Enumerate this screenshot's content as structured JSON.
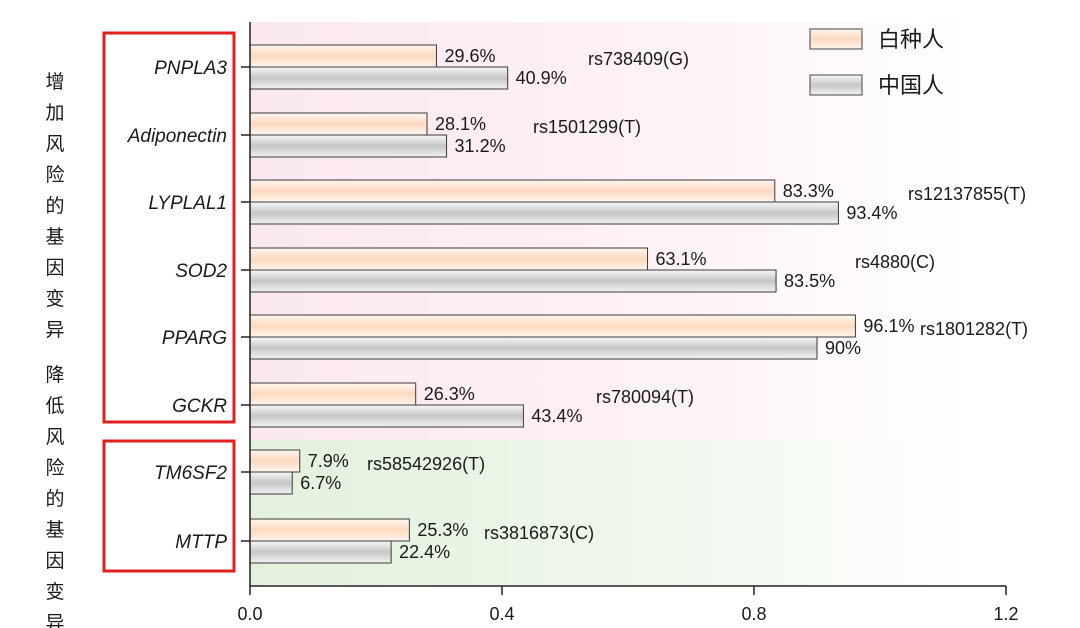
{
  "chart_data": {
    "type": "bar",
    "orientation": "horizontal",
    "categories": [
      "PNPLA3",
      "Adiponectin",
      "LYPLAL1",
      "SOD2",
      "PPARG",
      "GCKR",
      "TM6SF2",
      "MTTP"
    ],
    "snps": [
      "rs738409(G)",
      "rs1501299(T)",
      "rs12137855(T)",
      "rs4880(C)",
      "rs1801282(T)",
      "rs780094(T)",
      "rs58542926(T)",
      "rs3816873(C)"
    ],
    "series": [
      {
        "name": "白种人",
        "values": [
          0.296,
          0.281,
          0.833,
          0.631,
          0.961,
          0.263,
          0.079,
          0.253
        ],
        "labels": [
          "29.6%",
          "28.1%",
          "83.3%",
          "63.1%",
          "96.1%",
          "26.3%",
          "7.9%",
          "25.3%"
        ],
        "color": "#fde3d0"
      },
      {
        "name": "中国人",
        "values": [
          0.409,
          0.312,
          0.934,
          0.835,
          0.9,
          0.434,
          0.067,
          0.224
        ],
        "labels": [
          "40.9%",
          "31.2%",
          "93.4%",
          "83.5%",
          "90%",
          "43.4%",
          "6.7%",
          "22.4%"
        ],
        "color": "#d6d6d6"
      }
    ],
    "xlim": [
      0,
      1.2
    ],
    "xticks": [
      "0.0",
      "0.4",
      "0.8",
      "1.2"
    ],
    "legend_position": "top-right",
    "groups": [
      {
        "label": "增加风险的基因变异",
        "categories": [
          "PNPLA3",
          "Adiponectin",
          "LYPLAL1",
          "SOD2",
          "PPARG",
          "GCKR"
        ],
        "background": "pink",
        "box_color": "#e02020"
      },
      {
        "label": "降低风险的基因变异",
        "categories": [
          "TM6SF2",
          "MTTP"
        ],
        "background": "green",
        "box_color": "#e02020"
      }
    ]
  }
}
